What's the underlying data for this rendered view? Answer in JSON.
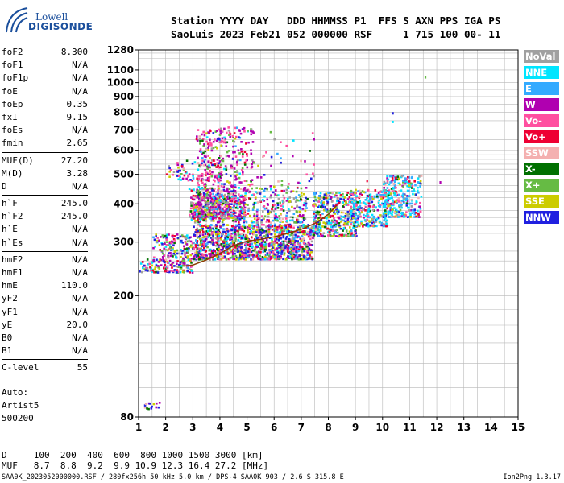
{
  "logo": {
    "line1": "Lowell",
    "line2": "DIGISONDE"
  },
  "header": {
    "labels": "Station YYYY DAY   DDD HHMMSS P1  FFS S AXN PPS IGA PS",
    "values": "SaoLuis 2023 Feb21 052 000000 RSF     1 715 100 00- 11"
  },
  "params": [
    [
      {
        "k": "foF2",
        "v": "8.300"
      },
      {
        "k": "foF1",
        "v": "N/A"
      },
      {
        "k": "foF1p",
        "v": "N/A"
      },
      {
        "k": "foE",
        "v": "N/A"
      },
      {
        "k": "foEp",
        "v": "0.35"
      },
      {
        "k": "fxI",
        "v": "9.15"
      },
      {
        "k": "foEs",
        "v": "N/A"
      },
      {
        "k": "fmin",
        "v": "2.65"
      }
    ],
    [
      {
        "k": "MUF(D)",
        "v": "27.20"
      },
      {
        "k": "M(D)",
        "v": "3.28"
      },
      {
        "k": "D",
        "v": "N/A"
      }
    ],
    [
      {
        "k": "h`F",
        "v": "245.0"
      },
      {
        "k": "h`F2",
        "v": "245.0"
      },
      {
        "k": "h`E",
        "v": "N/A"
      },
      {
        "k": "h`Es",
        "v": "N/A"
      }
    ],
    [
      {
        "k": "hmF2",
        "v": "N/A"
      },
      {
        "k": "hmF1",
        "v": "N/A"
      },
      {
        "k": "hmE",
        "v": "110.0"
      },
      {
        "k": "yF2",
        "v": "N/A"
      },
      {
        "k": "yF1",
        "v": "N/A"
      },
      {
        "k": "yE",
        "v": "20.0"
      },
      {
        "k": "B0",
        "v": "N/A"
      },
      {
        "k": "B1",
        "v": "N/A"
      }
    ],
    [
      {
        "k": "C-level",
        "v": "55"
      }
    ]
  ],
  "autoscale": {
    "line1": "Auto:",
    "line2": "Artist5",
    "line3": "500200"
  },
  "footer": {
    "d_row": "D     100  200  400  600  800 1000 1500 3000 [km]",
    "muf_row": "MUF   8.7  8.8  9.2  9.9 10.9 12.3 16.4 27.2 [MHz]",
    "source": "SAA0K_2023052000000.RSF / 280fx256h 50 kHz 5.0 km / DPS-4 SAA0K 903 / 2.6 S 315.8 E",
    "version": "Ion2Png 1.3.17"
  },
  "legend": [
    {
      "label": "NoVal",
      "color": "#a0a0a0"
    },
    {
      "label": "NNE",
      "color": "#00e5ff"
    },
    {
      "label": "E",
      "color": "#33aaff"
    },
    {
      "label": "W",
      "color": "#b000b0"
    },
    {
      "label": "Vo-",
      "color": "#ff4fa0"
    },
    {
      "label": "Vo+",
      "color": "#ee0033"
    },
    {
      "label": "SSW",
      "color": "#f4b0b0"
    },
    {
      "label": "X-",
      "color": "#007000"
    },
    {
      "label": "X+",
      "color": "#66bb44"
    },
    {
      "label": "SSE",
      "color": "#cccc00"
    },
    {
      "label": "NNW",
      "color": "#2020e0"
    }
  ],
  "chart_data": {
    "type": "scatter",
    "title": "",
    "xlabel": "",
    "ylabel": "",
    "xlim": [
      1,
      15
    ],
    "ylim": [
      80,
      1280
    ],
    "x_ticks": [
      1,
      2,
      3,
      4,
      5,
      6,
      7,
      8,
      9,
      10,
      11,
      12,
      13,
      14,
      15
    ],
    "y_ticks": [
      80,
      200,
      300,
      400,
      500,
      600,
      700,
      800,
      900,
      1000,
      1100,
      1280
    ],
    "y_scale": "log-like",
    "grid": true,
    "trace_color": "#8a3a00",
    "trace": [
      [
        2.65,
        250
      ],
      [
        3.0,
        252
      ],
      [
        3.5,
        262
      ],
      [
        4.0,
        275
      ],
      [
        4.5,
        292
      ],
      [
        5.0,
        302
      ],
      [
        5.5,
        306
      ],
      [
        6.0,
        312
      ],
      [
        6.5,
        320
      ],
      [
        7.0,
        330
      ],
      [
        7.5,
        345
      ],
      [
        8.0,
        370
      ],
      [
        8.3,
        395
      ]
    ],
    "clusters": [
      {
        "x": [
          1.0,
          1.5
        ],
        "y": [
          240,
          265
        ],
        "n": 30,
        "w": [
          5,
          5,
          1,
          2,
          2,
          2,
          1,
          1,
          1,
          1,
          3
        ]
      },
      {
        "x": [
          1.5,
          3.0
        ],
        "y": [
          240,
          320
        ],
        "n": 260,
        "w": [
          2,
          2,
          1,
          5,
          4,
          2,
          1,
          1,
          2,
          4,
          6
        ]
      },
      {
        "x": [
          3.0,
          7.4
        ],
        "y": [
          265,
          345
        ],
        "n": 1300,
        "w": [
          2,
          2,
          2,
          4,
          4,
          3,
          1,
          2,
          2,
          4,
          6
        ]
      },
      {
        "x": [
          2.9,
          4.9
        ],
        "y": [
          360,
          435
        ],
        "n": 420,
        "w": [
          1,
          1,
          1,
          8,
          5,
          2,
          1,
          1,
          1,
          1,
          2
        ]
      },
      {
        "x": [
          2.8,
          7.2
        ],
        "y": [
          350,
          460
        ],
        "n": 450,
        "w": [
          3,
          2,
          2,
          3,
          2,
          2,
          1,
          1,
          3,
          3,
          2
        ]
      },
      {
        "x": [
          3.1,
          5.2
        ],
        "y": [
          440,
          720
        ],
        "n": 320,
        "w": [
          2,
          1,
          1,
          8,
          4,
          1,
          1,
          1,
          2,
          1,
          1
        ]
      },
      {
        "x": [
          2.0,
          4.0
        ],
        "y": [
          480,
          560
        ],
        "n": 80,
        "w": [
          1,
          1,
          1,
          4,
          6,
          5,
          1,
          1,
          1,
          1,
          3
        ]
      },
      {
        "x": [
          7.4,
          9.0
        ],
        "y": [
          315,
          440
        ],
        "n": 420,
        "w": [
          2,
          3,
          3,
          2,
          3,
          2,
          1,
          2,
          3,
          4,
          4
        ]
      },
      {
        "x": [
          8.8,
          10.2
        ],
        "y": [
          340,
          450
        ],
        "n": 260,
        "w": [
          2,
          6,
          5,
          2,
          2,
          2,
          1,
          1,
          1,
          2,
          2
        ]
      },
      {
        "x": [
          10.0,
          11.4
        ],
        "y": [
          365,
          500
        ],
        "n": 300,
        "w": [
          2,
          8,
          6,
          2,
          2,
          1,
          1,
          1,
          1,
          1,
          1
        ]
      },
      {
        "x": [
          5.0,
          7.5
        ],
        "y": [
          460,
          700
        ],
        "n": 40,
        "w": [
          2,
          1,
          1,
          5,
          3,
          1,
          1,
          1,
          2,
          1,
          1
        ]
      },
      {
        "x": [
          1.2,
          1.8
        ],
        "y": [
          85,
          90
        ],
        "n": 14,
        "w": [
          1,
          1,
          1,
          4,
          1,
          1,
          1,
          1,
          1,
          1,
          6
        ]
      }
    ]
  }
}
